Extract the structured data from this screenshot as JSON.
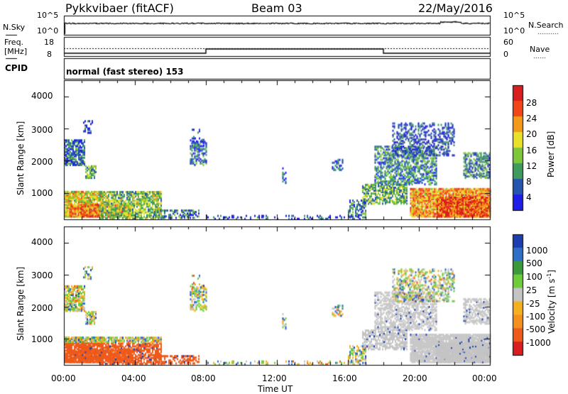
{
  "header": {
    "radar": "Pykkvibaer (fitACF)",
    "beam": "Beam 03",
    "date": "22/May/2016"
  },
  "sky_panel": {
    "left_label": "N.Sky",
    "left_ticks": [
      "10^5",
      "10^0"
    ],
    "right_label": "N.Search",
    "right_ticks": [
      "10^5",
      "10^0"
    ]
  },
  "freq_panel": {
    "left_label_1": "Freq.",
    "left_label_2": "[MHz]",
    "left_ticks": [
      "18",
      "8"
    ],
    "right_label": "Nave",
    "right_ticks": [
      "60",
      "0"
    ]
  },
  "cpid": {
    "label": "CPID",
    "text": "normal (fast stereo) 153"
  },
  "chart_data": [
    {
      "type": "heatmap",
      "title": "",
      "ylabel": "Slant Range [km]",
      "ylim": [
        180,
        4500
      ],
      "yticks": [
        "4000",
        "3000",
        "2000",
        "1000"
      ],
      "xlabel": "",
      "colorbar_label": "Power [dB]",
      "colorbar_ticks": [
        "28",
        "24",
        "20",
        "16",
        "12",
        "8",
        "4"
      ],
      "colorbar_colors": [
        "#1e1ee6",
        "#2655b0",
        "#3f9a5e",
        "#7ec63a",
        "#e8e02a",
        "#f39a1a",
        "#f0461a",
        "#d81e1e"
      ]
    },
    {
      "type": "heatmap",
      "title": "",
      "ylabel": "Slant Range [km]",
      "ylim": [
        180,
        4500
      ],
      "yticks": [
        "4000",
        "3000",
        "2000",
        "1000"
      ],
      "xlabel": "Time UT",
      "xticks": [
        "00:00",
        "04:00",
        "08:00",
        "12:00",
        "16:00",
        "20:00",
        "00:00"
      ],
      "colorbar_label": "Velocity [m s",
      "colorbar_label_sup": "-1",
      "colorbar_label_end": "]",
      "colorbar_ticks": [
        "1000",
        "500",
        "100",
        "25",
        "-25",
        "-100",
        "-500",
        "-1000"
      ],
      "colorbar_colors": [
        "#1e3eb0",
        "#2f6fc8",
        "#3a9a3a",
        "#6ccc3a",
        "#c4c4c4",
        "#f4b01e",
        "#f4901e",
        "#ee5a1a",
        "#d81e1e"
      ]
    }
  ]
}
